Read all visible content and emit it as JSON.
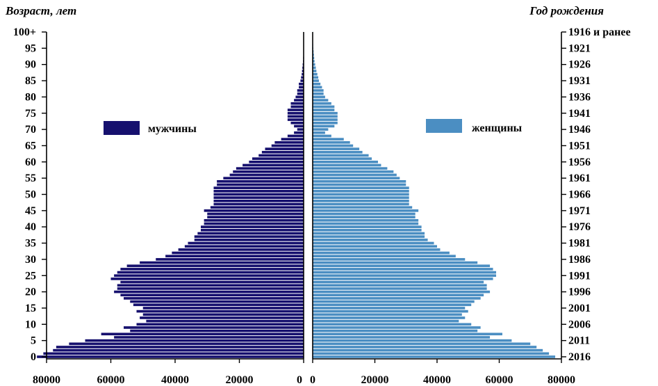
{
  "chart_data": {
    "type": "population_pyramid",
    "left_axis_title": "Возраст, лет",
    "right_axis_title": "Год рождения",
    "age_ticks": [
      "0",
      "5",
      "10",
      "15",
      "20",
      "25",
      "30",
      "35",
      "40",
      "45",
      "50",
      "55",
      "60",
      "65",
      "70",
      "75",
      "80",
      "85",
      "90",
      "95",
      "100+"
    ],
    "year_ticks": [
      "2016",
      "2011",
      "2006",
      "2001",
      "1996",
      "1991",
      "1986",
      "1981",
      "1976",
      "1971",
      "1966",
      "1961",
      "1956",
      "1951",
      "1946",
      "1941",
      "1936",
      "1931",
      "1926",
      "1921",
      "1916 и ранее"
    ],
    "x_ticks_male": [
      "80000",
      "60000",
      "40000",
      "20000",
      "0"
    ],
    "x_ticks_female": [
      "0",
      "20000",
      "40000",
      "60000",
      "80000"
    ],
    "xlim": [
      0,
      80000
    ],
    "ylim": [
      0,
      100
    ],
    "series": [
      {
        "name": "мужчины",
        "color": "#16106e",
        "ages": [
          0,
          1,
          2,
          3,
          4,
          5,
          6,
          7,
          8,
          9,
          10,
          11,
          12,
          13,
          14,
          15,
          16,
          17,
          18,
          19,
          20,
          21,
          22,
          23,
          24,
          25,
          26,
          27,
          28,
          29,
          30,
          31,
          32,
          33,
          34,
          35,
          36,
          37,
          38,
          39,
          40,
          41,
          42,
          43,
          44,
          45,
          46,
          47,
          48,
          49,
          50,
          51,
          52,
          53,
          54,
          55,
          56,
          57,
          58,
          59,
          60,
          61,
          62,
          63,
          64,
          65,
          66,
          67,
          68,
          69,
          70,
          71,
          72,
          73,
          74,
          75,
          76,
          77,
          78,
          79,
          80,
          81,
          82,
          83,
          84,
          85,
          86,
          87,
          88,
          89,
          90,
          91,
          92,
          93,
          94,
          95,
          96,
          97,
          98,
          99,
          100
        ],
        "values": [
          83000,
          81000,
          78000,
          77000,
          73000,
          68000,
          59000,
          63000,
          54000,
          56000,
          52000,
          49000,
          51000,
          50000,
          52000,
          50000,
          53000,
          54000,
          56000,
          57000,
          59000,
          58000,
          58000,
          57000,
          60000,
          59000,
          58000,
          57000,
          55000,
          51000,
          46000,
          43000,
          41000,
          39000,
          37000,
          36000,
          34000,
          34000,
          33000,
          32000,
          32000,
          31000,
          31000,
          30000,
          30000,
          31000,
          29000,
          28000,
          28000,
          28000,
          28000,
          28000,
          28000,
          27000,
          27000,
          25000,
          23000,
          22000,
          21000,
          19000,
          17000,
          16000,
          14000,
          13000,
          12000,
          10000,
          9000,
          7000,
          5000,
          3000,
          2000,
          3000,
          4000,
          5000,
          5000,
          5000,
          5000,
          4000,
          4000,
          3000,
          2500,
          2000,
          2000,
          1500,
          1500,
          1000,
          800,
          600,
          500,
          400,
          300,
          200,
          150,
          100,
          80,
          60,
          40,
          30,
          20,
          10,
          10
        ]
      },
      {
        "name": "женщины",
        "color": "#4b8ec2",
        "ages": [
          0,
          1,
          2,
          3,
          4,
          5,
          6,
          7,
          8,
          9,
          10,
          11,
          12,
          13,
          14,
          15,
          16,
          17,
          18,
          19,
          20,
          21,
          22,
          23,
          24,
          25,
          26,
          27,
          28,
          29,
          30,
          31,
          32,
          33,
          34,
          35,
          36,
          37,
          38,
          39,
          40,
          41,
          42,
          43,
          44,
          45,
          46,
          47,
          48,
          49,
          50,
          51,
          52,
          53,
          54,
          55,
          56,
          57,
          58,
          59,
          60,
          61,
          62,
          63,
          64,
          65,
          66,
          67,
          68,
          69,
          70,
          71,
          72,
          73,
          74,
          75,
          76,
          77,
          78,
          79,
          80,
          81,
          82,
          83,
          84,
          85,
          86,
          87,
          88,
          89,
          90,
          91,
          92,
          93,
          94,
          95,
          96,
          97,
          98,
          99,
          100
        ],
        "values": [
          78000,
          76000,
          74000,
          72000,
          70000,
          64000,
          57000,
          61000,
          53000,
          54000,
          51000,
          47000,
          49000,
          48000,
          50000,
          49000,
          51000,
          52000,
          54000,
          55000,
          57000,
          56000,
          56000,
          55000,
          58000,
          59000,
          59000,
          58000,
          57000,
          53000,
          49000,
          46000,
          44000,
          41000,
          40000,
          39000,
          37000,
          36000,
          36000,
          35000,
          35000,
          34000,
          34000,
          33000,
          33000,
          34000,
          32000,
          31000,
          31000,
          31000,
          31000,
          31000,
          31000,
          30000,
          30000,
          28000,
          27000,
          26000,
          24000,
          22000,
          21000,
          19000,
          18000,
          16000,
          15000,
          13000,
          12000,
          10000,
          6000,
          4000,
          5000,
          7000,
          8000,
          8000,
          8000,
          8000,
          7000,
          7000,
          6000,
          5000,
          4000,
          3500,
          3500,
          3000,
          2500,
          2000,
          1800,
          1500,
          1200,
          1000,
          800,
          600,
          500,
          400,
          300,
          200,
          150,
          100,
          60,
          40,
          30
        ]
      }
    ],
    "legend_placement": "inside each panel, upper-middle",
    "grid": false
  }
}
